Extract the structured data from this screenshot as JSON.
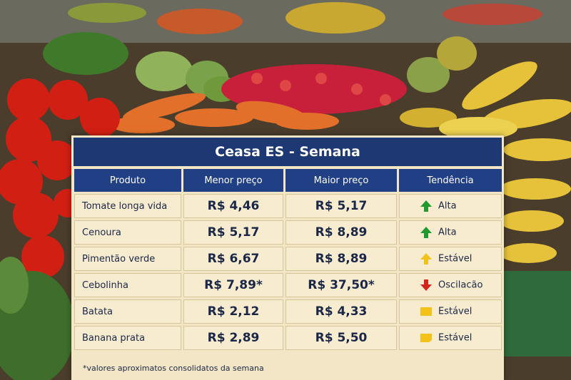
{
  "title": "Ceasa ES - Semana",
  "table": {
    "headers": [
      "Produto",
      "Menor preço",
      "Maior preço",
      "Tendência"
    ],
    "rows": [
      [
        "Tomate longa vida",
        "R$ 4,46",
        "R$ 5,17",
        "Alta"
      ],
      [
        "Cenoura",
        "R$ 5,17",
        "R$ 8,89",
        "Alta"
      ],
      [
        "Pimentão verde",
        "R$ 6,67",
        "R$ 8,89",
        "Estável"
      ],
      [
        "Cebolinha",
        "R$ 7,89*",
        "R$ 37,50*",
        "Oscilacão"
      ],
      [
        "Batata",
        "R$ 2,12",
        "R$ 4,33",
        "Estável"
      ],
      [
        "Banana prata",
        "R$ 2,89",
        "R$ 5,50",
        "Estável"
      ]
    ]
  },
  "footnote": "*valores aproximatos consolidatos da semana"
}
